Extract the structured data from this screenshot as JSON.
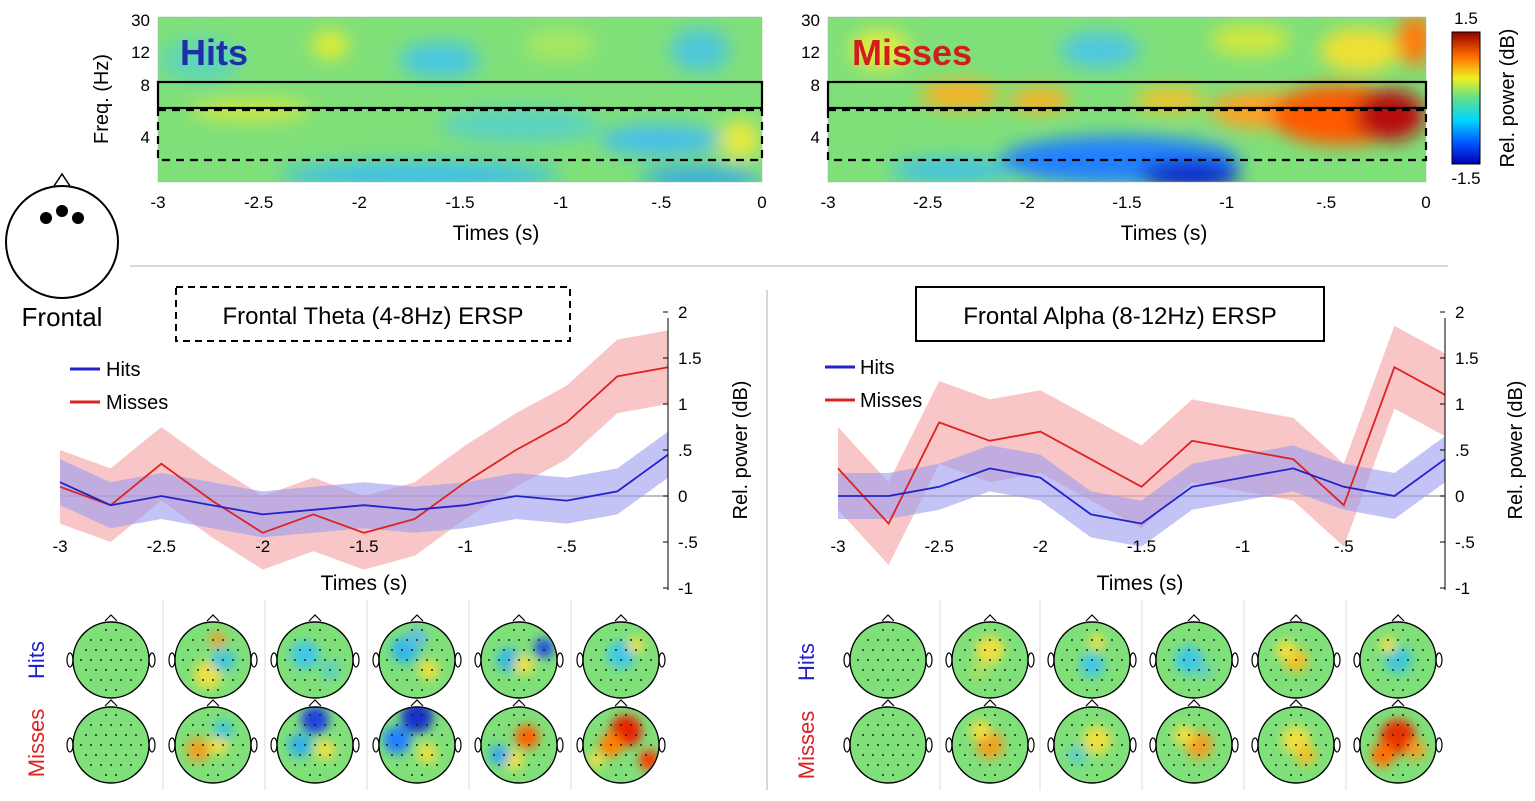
{
  "colors": {
    "hits": "#2222cc",
    "misses": "#dd2222",
    "hits_band": "#9b9bf0",
    "misses_band": "#f4a0a0",
    "hits_title": "#1f2fa8",
    "misses_title": "#d11d1d",
    "zero_line": "#999999",
    "separator": "#cccccc"
  },
  "electrode_label": "Frontal",
  "chart_data": [
    {
      "id": "tf-hits",
      "type": "heatmap",
      "title": "Hits",
      "xlabel": "Times (s)",
      "ylabel": "Freq. (Hz)",
      "xlim": [
        -3,
        0
      ],
      "xticks": [
        "-3",
        "-2.5",
        "-2",
        "-1.5",
        "-1",
        "-.5",
        "0"
      ],
      "yticks": [
        "30",
        "12",
        "8",
        "4"
      ],
      "boxes": [
        "alpha 8-12Hz (solid)",
        "theta 4-8Hz (dashed)"
      ]
    },
    {
      "id": "tf-misses",
      "type": "heatmap",
      "title": "Misses",
      "xlabel": "Times (s)",
      "ylabel": "",
      "xlim": [
        -3,
        0
      ],
      "xticks": [
        "-3",
        "-2.5",
        "-2",
        "-1.5",
        "-1",
        "-.5",
        "0"
      ],
      "yticks": [
        "30",
        "12",
        "8",
        "4"
      ],
      "colorbar": {
        "label": "Rel. power (dB)",
        "max": "1.5",
        "min": "-1.5",
        "range": [
          -1.5,
          1.5
        ]
      }
    },
    {
      "id": "theta-ersp",
      "type": "line",
      "title": "Frontal Theta (4-8Hz) ERSP",
      "xlabel": "Times (s)",
      "ylabel": "Rel. power (dB)",
      "xlim": [
        -3,
        0
      ],
      "ylim": [
        -1,
        2
      ],
      "xticks": [
        "-3",
        "-2.5",
        "-2",
        "-1.5",
        "-1",
        "-.5"
      ],
      "yticks": [
        "2",
        "1.5",
        "1",
        ".5",
        "0",
        "-.5",
        "-1"
      ],
      "legend": [
        "Hits",
        "Misses"
      ],
      "x": [
        -3,
        -2.75,
        -2.5,
        -2.25,
        -2,
        -1.75,
        -1.5,
        -1.25,
        -1,
        -0.75,
        -0.5,
        -0.25,
        0
      ],
      "series": [
        {
          "name": "Hits",
          "values": [
            0.15,
            -0.1,
            0.0,
            -0.1,
            -0.2,
            -0.15,
            -0.1,
            -0.15,
            -0.1,
            0.0,
            -0.05,
            0.05,
            0.45
          ],
          "band": 0.25
        },
        {
          "name": "Misses",
          "values": [
            0.1,
            -0.1,
            0.35,
            -0.05,
            -0.4,
            -0.2,
            -0.4,
            -0.25,
            0.15,
            0.5,
            0.8,
            1.3,
            1.4
          ],
          "band": 0.4
        }
      ]
    },
    {
      "id": "alpha-ersp",
      "type": "line",
      "title": "Frontal Alpha (8-12Hz) ERSP",
      "xlabel": "Times (s)",
      "ylabel": "Rel. power (dB)",
      "xlim": [
        -3,
        0
      ],
      "ylim": [
        -1,
        2
      ],
      "xticks": [
        "-3",
        "-2.5",
        "-2",
        "-1.5",
        "-1",
        "-.5"
      ],
      "yticks": [
        "2",
        "1.5",
        "1",
        ".5",
        "0",
        "-.5",
        "-1"
      ],
      "legend": [
        "Hits",
        "Misses"
      ],
      "x": [
        -3,
        -2.75,
        -2.5,
        -2.25,
        -2,
        -1.75,
        -1.5,
        -1.25,
        -1,
        -0.75,
        -0.5,
        -0.25,
        0
      ],
      "series": [
        {
          "name": "Hits",
          "values": [
            0.0,
            0.0,
            0.1,
            0.3,
            0.2,
            -0.2,
            -0.3,
            0.1,
            0.2,
            0.3,
            0.1,
            0.0,
            0.4
          ],
          "band": 0.25
        },
        {
          "name": "Misses",
          "values": [
            0.3,
            -0.3,
            0.8,
            0.6,
            0.7,
            0.4,
            0.1,
            0.6,
            0.5,
            0.4,
            -0.1,
            1.4,
            1.1
          ],
          "band": 0.45
        }
      ]
    }
  ],
  "topo_rows": [
    "Hits",
    "Misses"
  ]
}
